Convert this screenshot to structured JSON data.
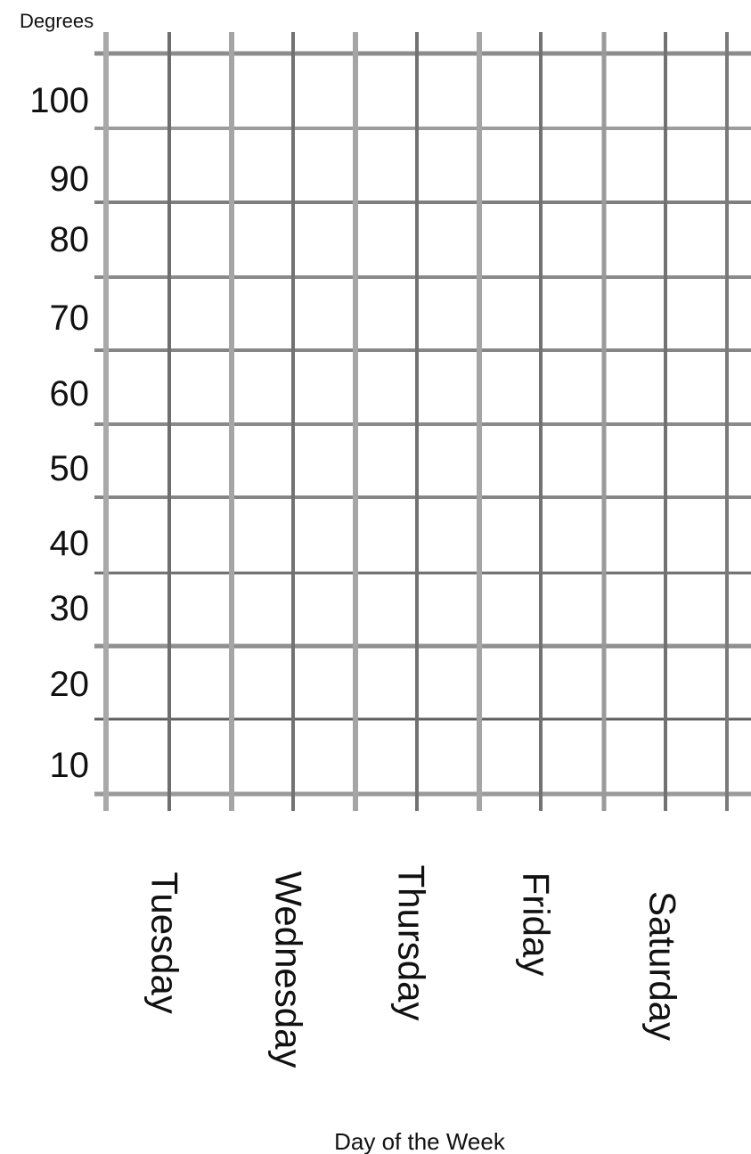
{
  "chart_data": {
    "type": "line",
    "title": "",
    "ylabel": "Degrees",
    "xlabel": "Day of the Week",
    "categories": [
      "Tuesday",
      "Wednesday",
      "Thursday",
      "Friday",
      "Saturday"
    ],
    "y_ticks": [
      10,
      20,
      30,
      40,
      50,
      60,
      70,
      80,
      90,
      100
    ],
    "ylim": [
      0,
      110
    ],
    "series": [],
    "grid": true,
    "legend": "none"
  }
}
